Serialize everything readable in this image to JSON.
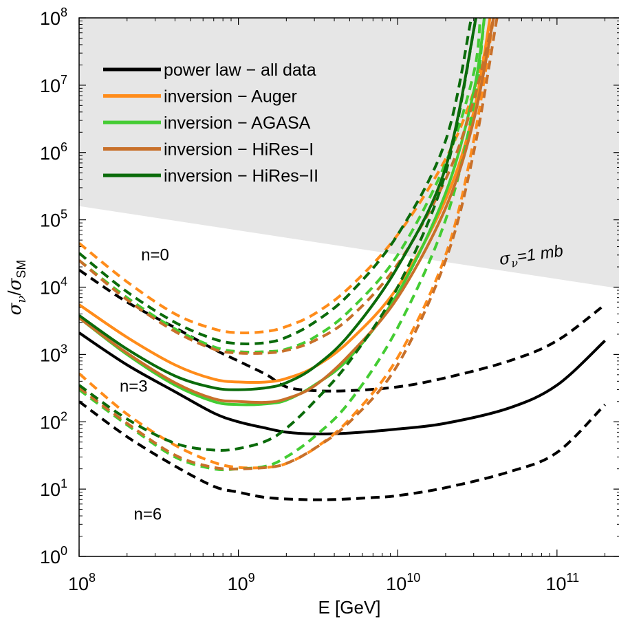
{
  "chart_data": {
    "type": "line",
    "xscale": "log",
    "yscale": "log",
    "xlim": [
      100000000.0,
      250000000000.0
    ],
    "ylim": [
      1,
      100000000.0
    ],
    "xlabel": "E [GeV]",
    "ylabel": {
      "base": "σ",
      "sub1": "ν",
      "sep": "/",
      "base2": "σ",
      "sub2": "SM"
    },
    "xticks": [
      {
        "value": 100000000.0,
        "base": "10",
        "exp": "8"
      },
      {
        "value": 1000000000.0,
        "base": "10",
        "exp": "9"
      },
      {
        "value": 10000000000.0,
        "base": "10",
        "exp": "10"
      },
      {
        "value": 100000000000.0,
        "base": "10",
        "exp": "11"
      }
    ],
    "yticks": [
      {
        "value": 1,
        "base": "10",
        "exp": "0"
      },
      {
        "value": 10,
        "base": "10",
        "exp": "1"
      },
      {
        "value": 100,
        "base": "10",
        "exp": "2"
      },
      {
        "value": 1000,
        "base": "10",
        "exp": "3"
      },
      {
        "value": 10000,
        "base": "10",
        "exp": "4"
      },
      {
        "value": 100000,
        "base": "10",
        "exp": "5"
      },
      {
        "value": 1000000,
        "base": "10",
        "exp": "6"
      },
      {
        "value": 10000000,
        "base": "10",
        "exp": "7"
      },
      {
        "value": 100000000,
        "base": "10",
        "exp": "8"
      }
    ],
    "shaded_region": {
      "label": "σν=1 mb",
      "label_sym": "σ",
      "label_sub": "ν",
      "label_rest": "=1 mb",
      "boundary": [
        [
          100000000.0,
          160000
        ],
        [
          250000000000.0,
          9500
        ]
      ],
      "color": "#e6e6e6"
    },
    "legend": [
      {
        "label": "power law − all data",
        "color": "#000000"
      },
      {
        "label": "inversion − Auger",
        "color": "#ff8c1a"
      },
      {
        "label": "inversion − AGASA",
        "color": "#44cc33"
      },
      {
        "label": "inversion − HiRes−I",
        "color": "#c8702a"
      },
      {
        "label": "inversion − HiRes−II",
        "color": "#0b6b0b"
      }
    ],
    "annotations": [
      {
        "text": "n=0",
        "at": [
          300000000.0,
          25000
        ]
      },
      {
        "text": "n=3",
        "at": [
          220000000.0,
          280
        ]
      },
      {
        "text": "n=6",
        "at": [
          270000000.0,
          3.5
        ]
      }
    ],
    "series": [
      {
        "name": "power law − all data (n=0)",
        "color": "#000000",
        "dash": true,
        "points": [
          [
            100000000.0,
            18000
          ],
          [
            200000000.0,
            6000
          ],
          [
            400000000.0,
            2500
          ],
          [
            700000000.0,
            1200
          ],
          [
            1000000000.0,
            800
          ],
          [
            1500000000.0,
            500
          ],
          [
            2000000000.0,
            330
          ],
          [
            3000000000.0,
            290
          ],
          [
            5000000000.0,
            290
          ],
          [
            10000000000.0,
            330
          ],
          [
            20000000000.0,
            450
          ],
          [
            50000000000.0,
            800
          ],
          [
            100000000000.0,
            1600
          ],
          [
            200000000000.0,
            5500
          ]
        ]
      },
      {
        "name": "power law − all data (n=3)",
        "color": "#000000",
        "dash": false,
        "points": [
          [
            100000000.0,
            2100
          ],
          [
            200000000.0,
            700
          ],
          [
            400000000.0,
            280
          ],
          [
            700000000.0,
            135
          ],
          [
            1000000000.0,
            100
          ],
          [
            1500000000.0,
            80
          ],
          [
            2000000000.0,
            70
          ],
          [
            3000000000.0,
            66
          ],
          [
            5000000000.0,
            68
          ],
          [
            10000000000.0,
            78
          ],
          [
            20000000000.0,
            95
          ],
          [
            50000000000.0,
            160
          ],
          [
            100000000000.0,
            350
          ],
          [
            200000000000.0,
            1600
          ]
        ]
      },
      {
        "name": "power law − all data (n=6)",
        "color": "#000000",
        "dash": true,
        "points": [
          [
            100000000.0,
            200
          ],
          [
            200000000.0,
            60
          ],
          [
            400000000.0,
            22
          ],
          [
            700000000.0,
            11
          ],
          [
            1000000000.0,
            9
          ],
          [
            1500000000.0,
            7.5
          ],
          [
            2500000000.0,
            7
          ],
          [
            4000000000.0,
            7
          ],
          [
            7000000000.0,
            7.5
          ],
          [
            10000000000.0,
            8
          ],
          [
            20000000000.0,
            10.5
          ],
          [
            50000000000.0,
            18
          ],
          [
            100000000000.0,
            35
          ],
          [
            200000000000.0,
            180
          ]
        ]
      },
      {
        "name": "inversion − Auger (n=0)",
        "color": "#ff8c1a",
        "dash": true,
        "points": [
          [
            100000000.0,
            45000
          ],
          [
            200000000.0,
            12000
          ],
          [
            400000000.0,
            4000
          ],
          [
            700000000.0,
            2400
          ],
          [
            1000000000.0,
            2100
          ],
          [
            1500000000.0,
            2200
          ],
          [
            2000000000.0,
            2600
          ],
          [
            3000000000.0,
            4000
          ],
          [
            5000000000.0,
            10000
          ],
          [
            10000000000.0,
            60000
          ],
          [
            20000000000.0,
            800000
          ],
          [
            30000000000.0,
            8000000
          ],
          [
            40000000000.0,
            100000000
          ]
        ]
      },
      {
        "name": "inversion − Auger (n=3)",
        "color": "#ff8c1a",
        "dash": false,
        "points": [
          [
            100000000.0,
            5500
          ],
          [
            200000000.0,
            1800
          ],
          [
            400000000.0,
            700
          ],
          [
            700000000.0,
            430
          ],
          [
            1000000000.0,
            390
          ],
          [
            1500000000.0,
            390
          ],
          [
            2000000000.0,
            440
          ],
          [
            3000000000.0,
            650
          ],
          [
            5000000000.0,
            1600
          ],
          [
            10000000000.0,
            10000
          ],
          [
            20000000000.0,
            200000
          ],
          [
            30000000000.0,
            4000000
          ],
          [
            38000000000.0,
            100000000
          ]
        ]
      },
      {
        "name": "inversion − Auger (n=6)",
        "color": "#ff8c1a",
        "dash": true,
        "points": [
          [
            100000000.0,
            520
          ],
          [
            200000000.0,
            130
          ],
          [
            400000000.0,
            45
          ],
          [
            700000000.0,
            25
          ],
          [
            1000000000.0,
            21
          ],
          [
            1500000000.0,
            21
          ],
          [
            2000000000.0,
            24
          ],
          [
            3000000000.0,
            40
          ],
          [
            5000000000.0,
            110
          ],
          [
            10000000000.0,
            900
          ],
          [
            20000000000.0,
            30000
          ],
          [
            30000000000.0,
            1500000
          ],
          [
            40000000000.0,
            100000000
          ]
        ]
      },
      {
        "name": "inversion − AGASA (n=0)",
        "color": "#44cc33",
        "dash": true,
        "points": [
          [
            100000000.0,
            25000
          ],
          [
            200000000.0,
            7000
          ],
          [
            400000000.0,
            2400
          ],
          [
            700000000.0,
            1300
          ],
          [
            1000000000.0,
            1100
          ],
          [
            1500000000.0,
            1100
          ],
          [
            2000000000.0,
            1200
          ],
          [
            3000000000.0,
            1800
          ],
          [
            5000000000.0,
            4500
          ],
          [
            10000000000.0,
            30000
          ],
          [
            20000000000.0,
            700000
          ],
          [
            30000000000.0,
            15000000
          ],
          [
            33000000000.0,
            100000000
          ]
        ]
      },
      {
        "name": "inversion − AGASA (n=3)",
        "color": "#44cc33",
        "dash": false,
        "points": [
          [
            100000000.0,
            3500
          ],
          [
            200000000.0,
            1000
          ],
          [
            400000000.0,
            350
          ],
          [
            700000000.0,
            200
          ],
          [
            1000000000.0,
            180
          ],
          [
            1500000000.0,
            185
          ],
          [
            2000000000.0,
            210
          ],
          [
            3000000000.0,
            350
          ],
          [
            5000000000.0,
            900
          ],
          [
            10000000000.0,
            8000
          ],
          [
            20000000000.0,
            250000
          ],
          [
            30000000000.0,
            8000000
          ],
          [
            35000000000.0,
            100000000
          ]
        ]
      },
      {
        "name": "inversion − AGASA (n=6)",
        "color": "#44cc33",
        "dash": true,
        "points": [
          [
            100000000.0,
            300
          ],
          [
            200000000.0,
            90
          ],
          [
            400000000.0,
            30
          ],
          [
            700000000.0,
            20
          ],
          [
            1000000000.0,
            20
          ],
          [
            1500000000.0,
            22
          ],
          [
            2000000000.0,
            30
          ],
          [
            3000000000.0,
            60
          ],
          [
            5000000000.0,
            200
          ],
          [
            10000000000.0,
            2500
          ],
          [
            20000000000.0,
            100000
          ],
          [
            30000000000.0,
            5000000
          ],
          [
            35000000000.0,
            100000000
          ]
        ]
      },
      {
        "name": "inversion − HiRes−I (n=0)",
        "color": "#c8702a",
        "dash": true,
        "points": [
          [
            100000000.0,
            25000
          ],
          [
            200000000.0,
            6500
          ],
          [
            400000000.0,
            2200
          ],
          [
            700000000.0,
            1200
          ],
          [
            1000000000.0,
            1050
          ],
          [
            1500000000.0,
            1050
          ],
          [
            2000000000.0,
            1150
          ],
          [
            3000000000.0,
            1600
          ],
          [
            5000000000.0,
            3500
          ],
          [
            10000000000.0,
            22000
          ],
          [
            20000000000.0,
            400000
          ],
          [
            30000000000.0,
            6000000
          ],
          [
            40000000000.0,
            100000000
          ]
        ]
      },
      {
        "name": "inversion − HiRes−I (n=3)",
        "color": "#c8702a",
        "dash": false,
        "points": [
          [
            100000000.0,
            3500
          ],
          [
            200000000.0,
            1050
          ],
          [
            400000000.0,
            380
          ],
          [
            700000000.0,
            220
          ],
          [
            1000000000.0,
            200
          ],
          [
            1500000000.0,
            195
          ],
          [
            2000000000.0,
            220
          ],
          [
            3000000000.0,
            340
          ],
          [
            5000000000.0,
            1000
          ],
          [
            10000000000.0,
            7000
          ],
          [
            20000000000.0,
            150000
          ],
          [
            30000000000.0,
            3000000
          ],
          [
            40000000000.0,
            100000000
          ]
        ]
      },
      {
        "name": "inversion − HiRes−I (n=6)",
        "color": "#c8702a",
        "dash": true,
        "points": [
          [
            100000000.0,
            320
          ],
          [
            200000000.0,
            95
          ],
          [
            400000000.0,
            32
          ],
          [
            700000000.0,
            21
          ],
          [
            1000000000.0,
            20
          ],
          [
            1500000000.0,
            21
          ],
          [
            2000000000.0,
            24
          ],
          [
            3000000000.0,
            40
          ],
          [
            5000000000.0,
            100
          ],
          [
            10000000000.0,
            700
          ],
          [
            20000000000.0,
            25000
          ],
          [
            30000000000.0,
            1000000
          ],
          [
            42000000000.0,
            100000000
          ]
        ]
      },
      {
        "name": "inversion − HiRes−II (n=0)",
        "color": "#0b6b0b",
        "dash": true,
        "points": [
          [
            100000000.0,
            32000
          ],
          [
            200000000.0,
            8500
          ],
          [
            400000000.0,
            3000
          ],
          [
            700000000.0,
            1700
          ],
          [
            1000000000.0,
            1450
          ],
          [
            1500000000.0,
            1500
          ],
          [
            2000000000.0,
            1800
          ],
          [
            3000000000.0,
            3000
          ],
          [
            5000000000.0,
            8000
          ],
          [
            10000000000.0,
            60000
          ],
          [
            20000000000.0,
            1500000
          ],
          [
            29000000000.0,
            100000000
          ]
        ]
      },
      {
        "name": "inversion − HiRes−II (n=3)",
        "color": "#0b6b0b",
        "dash": false,
        "points": [
          [
            100000000.0,
            3800
          ],
          [
            200000000.0,
            1200
          ],
          [
            400000000.0,
            480
          ],
          [
            700000000.0,
            320
          ],
          [
            1000000000.0,
            300
          ],
          [
            1500000000.0,
            320
          ],
          [
            2000000000.0,
            380
          ],
          [
            3000000000.0,
            650
          ],
          [
            5000000000.0,
            2000
          ],
          [
            10000000000.0,
            20000
          ],
          [
            20000000000.0,
            600000
          ],
          [
            31000000000.0,
            100000000
          ]
        ]
      },
      {
        "name": "inversion − HiRes−II (n=6)",
        "color": "#0b6b0b",
        "dash": true,
        "points": [
          [
            100000000.0,
            350
          ],
          [
            200000000.0,
            110
          ],
          [
            400000000.0,
            48
          ],
          [
            700000000.0,
            38
          ],
          [
            1000000000.0,
            40
          ],
          [
            1500000000.0,
            52
          ],
          [
            2000000000.0,
            80
          ],
          [
            3000000000.0,
            200
          ],
          [
            5000000000.0,
            800
          ],
          [
            10000000000.0,
            10000
          ],
          [
            20000000000.0,
            500000
          ],
          [
            31000000000.0,
            100000000
          ]
        ]
      }
    ]
  }
}
